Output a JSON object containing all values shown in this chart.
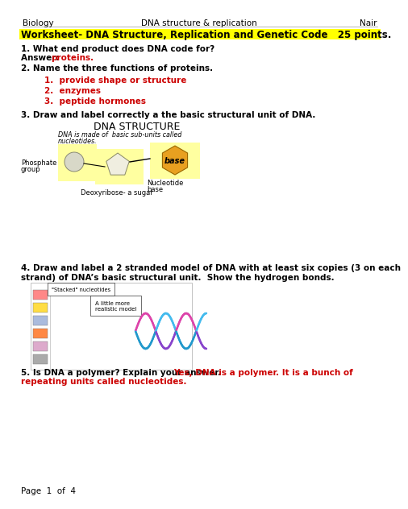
{
  "header_left": "Biology",
  "header_center": "DNA structure & replication",
  "header_right": "Nair",
  "title": "Worksheet- DNA Structure, Replication and Genetic Code   25 points.",
  "title_highlight": "#FFFF00",
  "q1_text": "1. What end product does DNA code for?",
  "q1_answer_prefix": "Answer: ",
  "q1_answer": "proteins.",
  "q2_text": "2. Name the three functions of proteins.",
  "q2_items": [
    "1.  provide shape or structure",
    "2.  enzymes",
    "3.  peptide hormones"
  ],
  "q3_text": "3. Draw and label correctly a the basic structural unit of DNA.",
  "q3_diagram_title": "DNA STRUCTURE",
  "q4_text": "4. Draw and label a 2 stranded model of DNA with at least six copies (3 on each\nstrand) of DNA’s basic structural unit.  Show the hydrogen bonds.",
  "q5_prefix": "5. Is DNA a polymer? Explain your answer. ",
  "q5_answer": "Yes, DNA is a polymer. It is a bunch of repeating units called nucleotides.",
  "footer": "Page  1  of  4",
  "red_color": "#CC0000",
  "black_color": "#000000",
  "bg_color": "#ffffff",
  "header_fontsize": 7.5,
  "body_fontsize": 7.5,
  "title_fontsize": 8.5
}
